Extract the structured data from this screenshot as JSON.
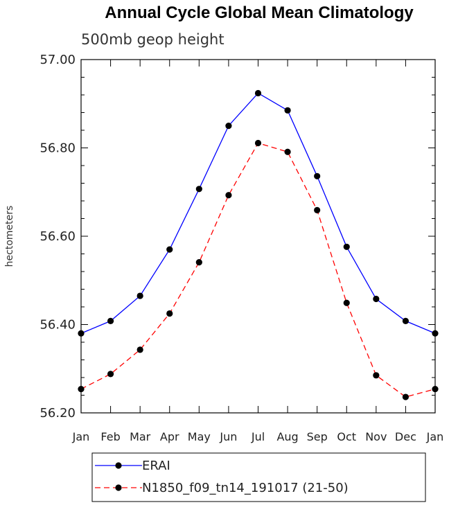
{
  "chart_data": {
    "type": "line",
    "title": "Annual Cycle Global Mean Climatology",
    "subtitle": "500mb geop height",
    "ylabel": "hectometers",
    "xlabel": "",
    "categories": [
      "Jan",
      "Feb",
      "Mar",
      "Apr",
      "May",
      "Jun",
      "Jul",
      "Aug",
      "Sep",
      "Oct",
      "Nov",
      "Dec",
      "Jan"
    ],
    "ylim": [
      56.2,
      57.0
    ],
    "yticks": [
      56.2,
      56.4,
      56.6,
      56.8,
      57.0
    ],
    "ytick_labels": [
      "56.20",
      "56.40",
      "56.60",
      "56.80",
      "57.00"
    ],
    "series": [
      {
        "name": "ERAI",
        "color": "#0000ff",
        "dash": "solid",
        "values": [
          56.38,
          56.408,
          56.465,
          56.57,
          56.707,
          56.85,
          56.924,
          56.885,
          56.736,
          56.576,
          56.458,
          56.408,
          56.38
        ]
      },
      {
        "name": "N1850_f09_tn14_191017 (21-50)",
        "color": "#ff0000",
        "dash": "dashed",
        "values": [
          56.254,
          56.288,
          56.343,
          56.425,
          56.541,
          56.693,
          56.811,
          56.791,
          56.659,
          56.449,
          56.285,
          56.236,
          56.254
        ]
      }
    ],
    "legend_position": "bottom-left",
    "grid": false
  }
}
